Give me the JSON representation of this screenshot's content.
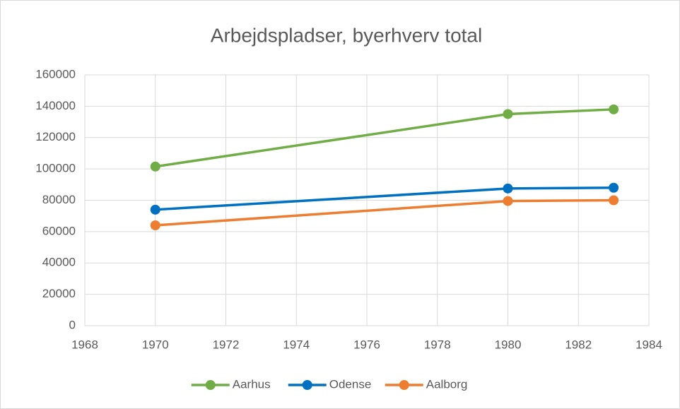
{
  "chart_data": {
    "type": "line",
    "title": "Arbejdspladser, byerhverv total",
    "x": [
      1970,
      1980,
      1983
    ],
    "series": [
      {
        "name": "Aarhus",
        "color": "#70ad47",
        "values": [
          101500,
          135000,
          138000
        ]
      },
      {
        "name": "Odense",
        "color": "#0070c0",
        "values": [
          74000,
          87500,
          88000
        ]
      },
      {
        "name": "Aalborg",
        "color": "#ed7d31",
        "values": [
          64000,
          79500,
          80000
        ]
      }
    ],
    "xlim": [
      1968,
      1984
    ],
    "xticks": [
      1968,
      1970,
      1972,
      1974,
      1976,
      1978,
      1980,
      1982,
      1984
    ],
    "ylim": [
      0,
      160000
    ],
    "yticks": [
      0,
      20000,
      40000,
      60000,
      80000,
      100000,
      120000,
      140000,
      160000
    ],
    "grid": true,
    "legend": "bottom"
  }
}
